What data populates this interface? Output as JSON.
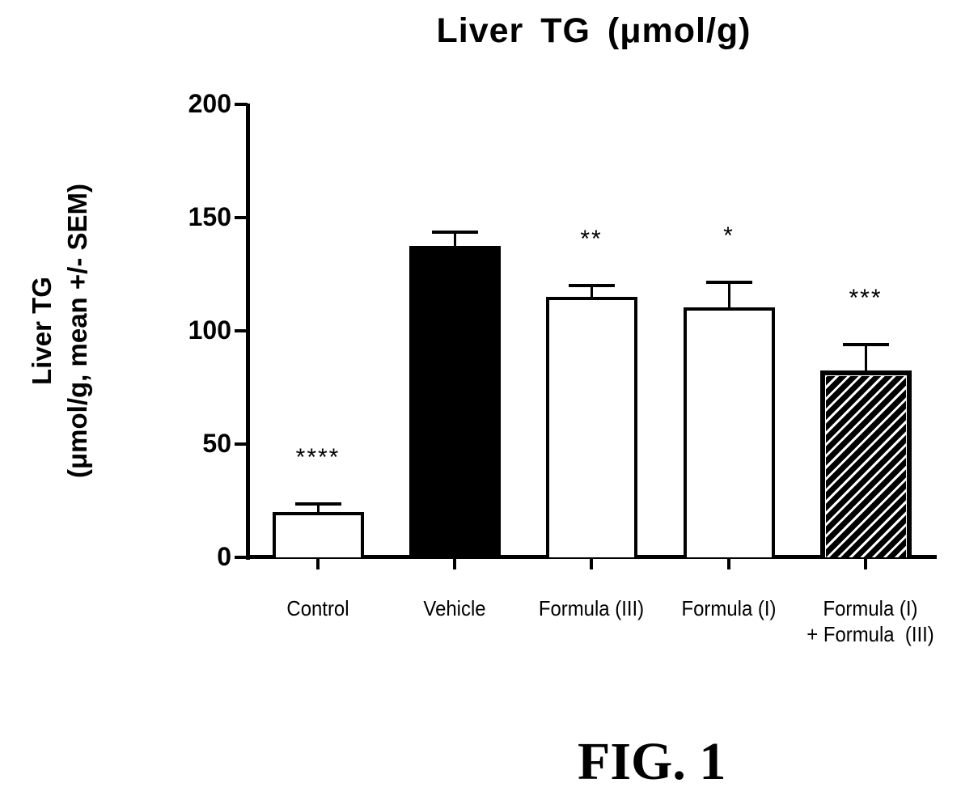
{
  "title": "Liver  TG  (μmol/g)",
  "ylabel": {
    "line1": "Liver  TG",
    "line2": "(μmol/g, mean +/- SEM)"
  },
  "figure_label": "FIG. 1",
  "colors": {
    "foreground": "#000000",
    "background": "#ffffff"
  },
  "chart_data": {
    "type": "bar",
    "title": "Liver  TG  (μmol/g)",
    "xlabel": "",
    "ylabel": "Liver TG (μmol/g, mean +/- SEM)",
    "ylim": [
      0,
      200
    ],
    "yticks": [
      0,
      50,
      100,
      150,
      200
    ],
    "grid": false,
    "legend": null,
    "categories": [
      "Control",
      "Vehicle",
      "Formula (III)",
      "Formula (I)",
      "Formula (I) + Formula (III)"
    ],
    "category_lines": [
      [
        "Control"
      ],
      [
        "Vehicle"
      ],
      [
        "Formula (III)"
      ],
      [
        "Formula (I)"
      ],
      [
        "Formula (I)",
        "+ Formula  (III)"
      ]
    ],
    "values": [
      20,
      137.5,
      115,
      110.5,
      82.5
    ],
    "error_sem": [
      3.5,
      6,
      5,
      11,
      11.5
    ],
    "significance": [
      "****",
      "",
      "**",
      "*",
      "***"
    ],
    "fills": [
      "white",
      "black",
      "white",
      "white",
      "hatched"
    ]
  }
}
